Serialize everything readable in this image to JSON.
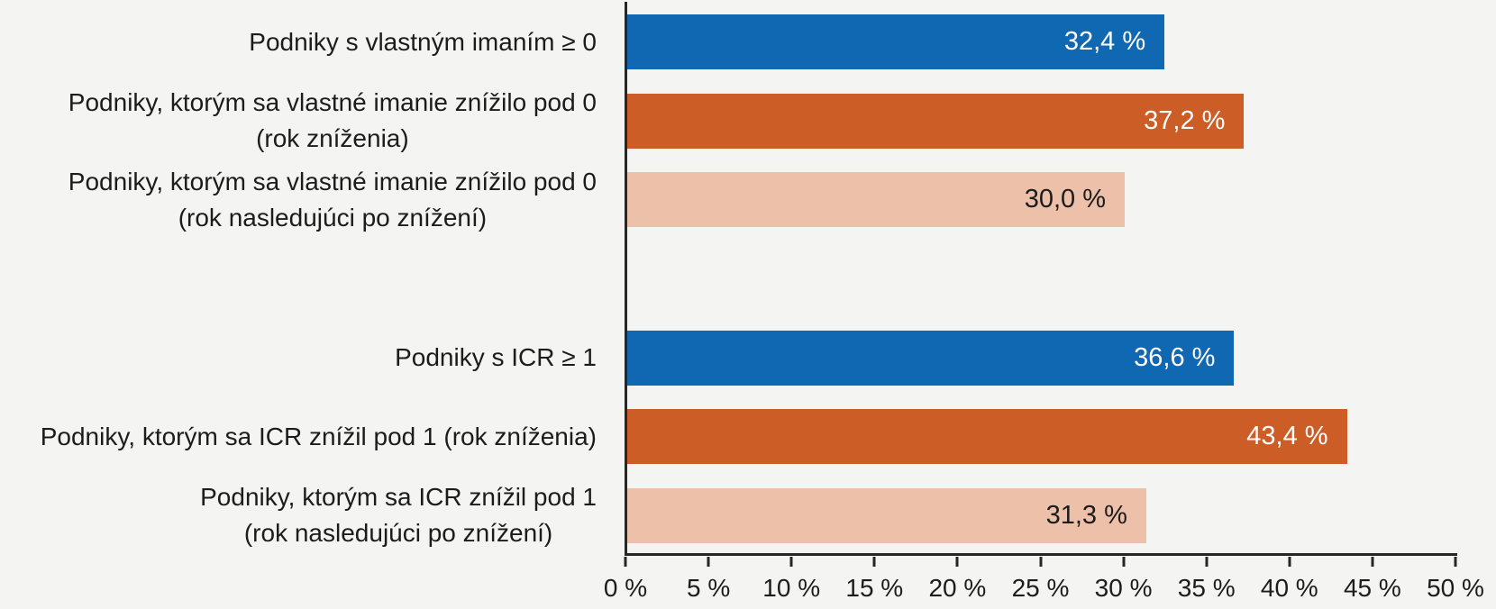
{
  "chart_data": {
    "type": "bar",
    "orientation": "horizontal",
    "title": "",
    "xlabel": "",
    "ylabel": "",
    "xlim": [
      0,
      50
    ],
    "x_ticks": [
      "0 %",
      "5 %",
      "10 %",
      "15 %",
      "20 %",
      "25 %",
      "30 %",
      "35 %",
      "40 %",
      "45 %",
      "50 %"
    ],
    "grid": "off",
    "legend": "none",
    "rows": [
      {
        "label_lines": [
          "Podniky s vlastným imaním ≥ 0"
        ],
        "value": 32.4,
        "value_label": "32,4 %",
        "color": "blue"
      },
      {
        "label_lines": [
          "Podniky, ktorým sa vlastné imanie znížilo pod 0",
          "(rok zníženia)"
        ],
        "value": 37.2,
        "value_label": "37,2 %",
        "color": "dark_orange"
      },
      {
        "label_lines": [
          "Podniky, ktorým sa vlastné imanie znížilo pod 0",
          "(rok nasledujúci po znížení)"
        ],
        "value": 30.0,
        "value_label": "30,0 %",
        "color": "light_peach"
      },
      {
        "label_lines": [],
        "value": null,
        "value_label": "",
        "color": null
      },
      {
        "label_lines": [
          "Podniky s ICR ≥ 1"
        ],
        "value": 36.6,
        "value_label": "36,6 %",
        "color": "blue"
      },
      {
        "label_lines": [
          "Podniky, ktorým sa ICR znížil pod 1 (rok zníženia)"
        ],
        "value": 43.4,
        "value_label": "43,4 %",
        "color": "dark_orange"
      },
      {
        "label_lines": [
          "Podniky, ktorým sa ICR znížil pod 1",
          "(rok nasledujúci po znížení)"
        ],
        "value": 31.3,
        "value_label": "31,3 %",
        "color": "light_peach"
      }
    ],
    "colors": {
      "blue": "#1067b2",
      "dark_orange": "#cc5d27",
      "light_peach": "#edc0a9"
    },
    "value_text_colors": {
      "blue": "#ffffff",
      "dark_orange": "#ffffff",
      "light_peach": "#1c1c1c"
    },
    "background": "#f4f4f2",
    "axis_color": "#262626"
  }
}
